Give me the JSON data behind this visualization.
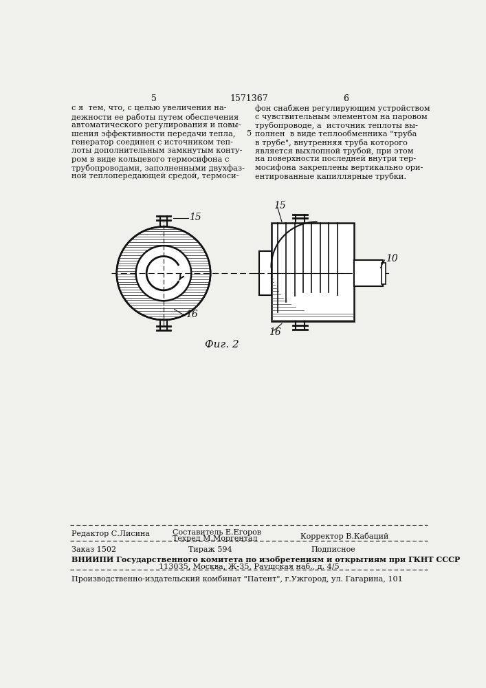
{
  "bg_color": "#f0f0ec",
  "text_color": "#111111",
  "page_number_left": "5",
  "page_number_center": "1571367",
  "page_number_right": "6",
  "left_column_text": [
    "с я  тем, что, с целью увеличения на-",
    "дежности ее работы путем обеспечения",
    "автоматического регулирования и повы-",
    "шения эффективности передачи тепла,",
    "генератор соединен с источником теп-",
    "лоты дополнительным замкнутым конту-",
    "ром в виде кольцевого термосифона с",
    "трубопроводами, заполненными двухфаз-",
    "ной теплопередающей средой, термоси-"
  ],
  "right_column_text": [
    "фон снабжен регулирующим устройством",
    "с чувствительным элементом на паровом",
    "трубопроводе, а  источник теплоты вы-",
    "полнен  в виде теплообменника \"труба",
    "в трубе\", внутренняя труба которого",
    "является выхлопной трубой, при этом",
    "на поверхности последней внутри тер-",
    "мосифона закреплены вертикально ори-",
    "ентированные капиллярные трубки."
  ],
  "right_col_number": "5",
  "fig_caption": "Фиг. 2",
  "label_15_left": "15",
  "label_16_left": "16",
  "label_15_right": "15",
  "label_16_right": "16",
  "label_10": "10",
  "footer_editor": "Редактор С.Лисина",
  "footer_compiler": "Составитель Е.Егоров",
  "footer_techred": "Техред М.Моргентал",
  "footer_corrector": "Корректор В.Кабаций",
  "footer_order": "Заказ 1502",
  "footer_edition": "Тираж 594",
  "footer_subscription": "Подписное",
  "footer_vnipi": "ВНИИПИ Государственного комитета по изобретениям и открытиям при ГКНТ СССР",
  "footer_address": "113035, Москва, Ж-35, Раушская наб., д. 4/5",
  "footer_plant": "Производственно-издательский комбинат \"Патент\", г.Ужгород, ул. Гагарина, 101"
}
